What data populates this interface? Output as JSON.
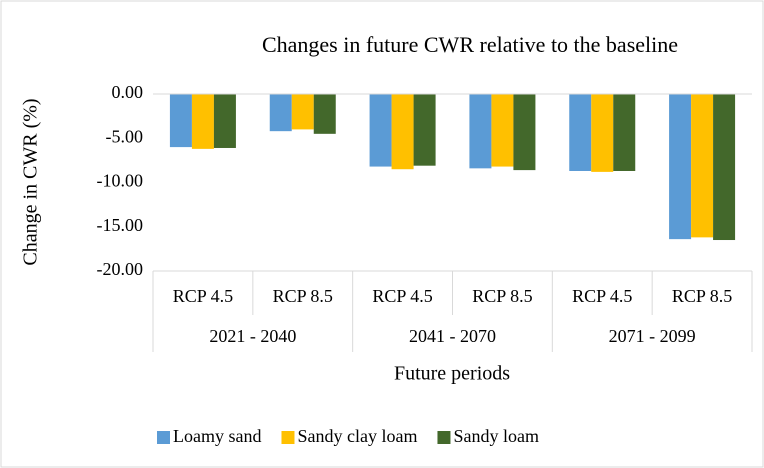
{
  "chart_data": {
    "type": "bar",
    "title": "Changes in future CWR relative to the baseline",
    "y_label": "Change in CWR (%)",
    "x_label": "Future periods",
    "categories": [
      "RCP 4.5",
      "RCP 8.5",
      "RCP 4.5",
      "RCP 8.5",
      "RCP 4.5",
      "RCP 8.5"
    ],
    "category_groups": [
      "2021 - 2040",
      "2041 - 2070",
      "2071 - 2099"
    ],
    "series": [
      {
        "name": "Loamy sand",
        "color": "#5b9bd5",
        "values": [
          -6.0,
          -4.2,
          -8.2,
          -8.4,
          -8.7,
          -16.4
        ]
      },
      {
        "name": "Sandy clay loam",
        "color": "#ffc000",
        "values": [
          -6.2,
          -4.0,
          -8.5,
          -8.2,
          -8.8,
          -16.2
        ]
      },
      {
        "name": "Sandy loam",
        "color": "#43682b",
        "values": [
          -6.1,
          -4.5,
          -8.1,
          -8.6,
          -8.7,
          -16.5
        ]
      }
    ],
    "ylim": [
      -20,
      0
    ],
    "yticks": [
      {
        "value": 0,
        "label": "0.00"
      },
      {
        "value": -5,
        "label": "-5.00"
      },
      {
        "value": -10,
        "label": "-10.00"
      },
      {
        "value": -15,
        "label": "-15.00"
      },
      {
        "value": -20,
        "label": "-20.00"
      }
    ],
    "legend": "bottom"
  }
}
